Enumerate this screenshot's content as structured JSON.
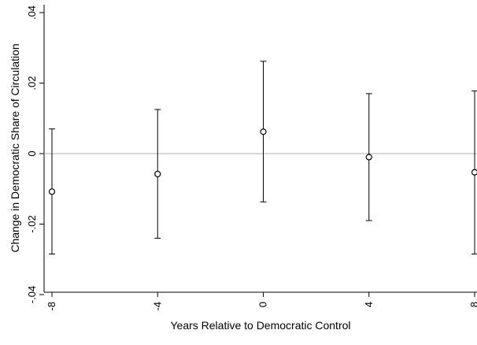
{
  "chart_data": {
    "type": "scatter",
    "subtype": "coefficient plot with 95% confidence intervals",
    "title": "",
    "xlabel": "Years Relative to Democratic Control",
    "ylabel": "Change in Democratic Share of Circulation",
    "xlim": [
      -8,
      8
    ],
    "ylim": [
      -0.04,
      0.04
    ],
    "x_ticks": [
      -8,
      -4,
      0,
      4,
      8
    ],
    "x_tick_labels": [
      "-8",
      "-4",
      "0",
      "4",
      "8"
    ],
    "y_ticks": [
      -0.04,
      -0.02,
      0,
      0.02,
      0.04
    ],
    "y_tick_labels": [
      "-.04",
      "-.02",
      "0",
      ".02",
      ".04"
    ],
    "reference_line_y": 0,
    "grid": false,
    "series": [
      {
        "points": [
          {
            "x": -8,
            "y": -0.0108,
            "ci_low": -0.0285,
            "ci_high": 0.007
          },
          {
            "x": -4,
            "y": -0.0058,
            "ci_low": -0.024,
            "ci_high": 0.0125
          },
          {
            "x": 0,
            "y": 0.0062,
            "ci_low": -0.0137,
            "ci_high": 0.0262
          },
          {
            "x": 4,
            "y": -0.001,
            "ci_low": -0.019,
            "ci_high": 0.017
          },
          {
            "x": 8,
            "y": -0.0053,
            "ci_low": -0.0285,
            "ci_high": 0.0178
          }
        ]
      }
    ],
    "colors": {
      "marker": "#000000",
      "ci": "#000000",
      "reference_line": "#b0b0b0",
      "axis": "#000000"
    }
  }
}
